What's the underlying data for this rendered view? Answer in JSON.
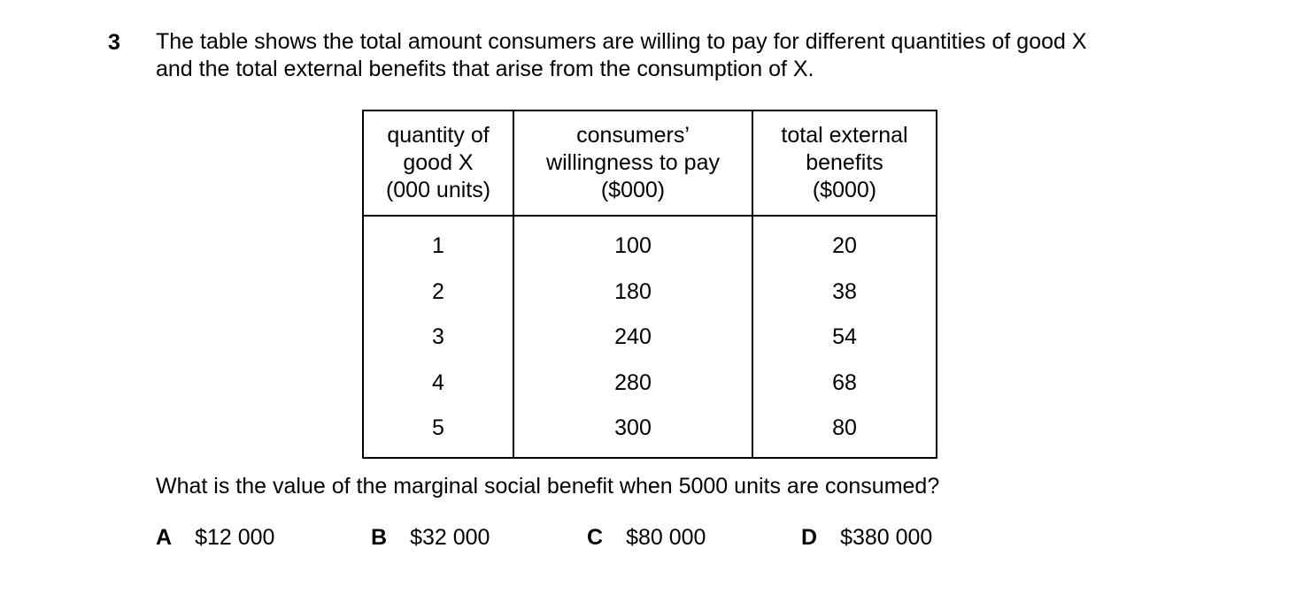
{
  "question": {
    "number": "3",
    "stem_line1": "The table shows the total amount consumers are willing to pay for different quantities of good X",
    "stem_line2": "and the total external benefits that arise from the consumption of X.",
    "prompt": "What is the value of the marginal social benefit when 5000 units are consumed?"
  },
  "table": {
    "headers": [
      [
        "quantity of",
        "good X",
        "(000 units)"
      ],
      [
        "consumers’",
        "willingness to pay",
        "($000)"
      ],
      [
        "total external",
        "benefits",
        "($000)"
      ]
    ],
    "rows": [
      [
        "1",
        "100",
        "20"
      ],
      [
        "2",
        "180",
        "38"
      ],
      [
        "3",
        "240",
        "54"
      ],
      [
        "4",
        "280",
        "68"
      ],
      [
        "5",
        "300",
        "80"
      ]
    ]
  },
  "options": [
    {
      "letter": "A",
      "text": "$12 000"
    },
    {
      "letter": "B",
      "text": "$32 000"
    },
    {
      "letter": "C",
      "text": "$80 000"
    },
    {
      "letter": "D",
      "text": "$380 000"
    }
  ]
}
